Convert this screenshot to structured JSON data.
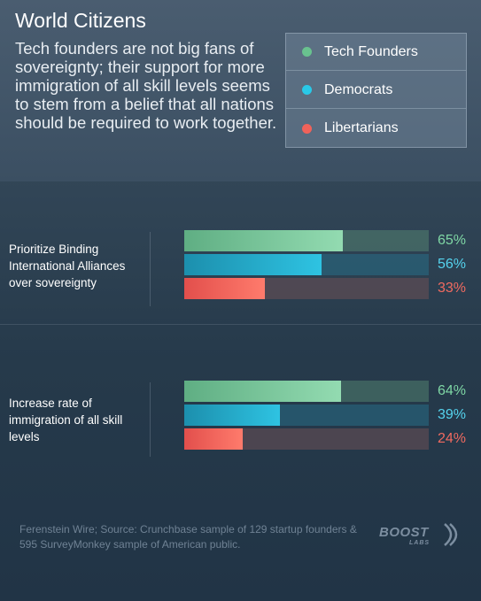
{
  "header": {
    "title": "World Citizens",
    "subtitle": "Tech founders are not big fans of sovereignty; their support for more immigration of all skill levels seems to stem from a belief that all nations should be required to work together."
  },
  "legend": [
    {
      "name": "Tech Founders",
      "color": "#69c28f"
    },
    {
      "name": "Democrats",
      "color": "#29c9e8"
    },
    {
      "name": "Libertarians",
      "color": "#f0625a"
    }
  ],
  "chart_data": {
    "type": "bar",
    "orientation": "horizontal",
    "categories": [
      "Prioritize Binding International Alliances over sovereignty",
      "Increase rate of immigration of all skill levels"
    ],
    "series": [
      {
        "name": "Tech Founders",
        "values": [
          65,
          64
        ],
        "labels": [
          "65%",
          "64%"
        ]
      },
      {
        "name": "Democrats",
        "values": [
          56,
          39
        ],
        "labels": [
          "56%",
          "39%"
        ]
      },
      {
        "name": "Libertarians",
        "values": [
          33,
          24
        ],
        "labels": [
          "33%",
          "24%"
        ]
      }
    ],
    "xlim": [
      0,
      100
    ],
    "grid": false,
    "legend_position": "top-right"
  },
  "footer": {
    "source": "Ferenstein Wire; Source: Crunchbase sample of 129 startup founders & 595 SurveyMonkey sample of American public.",
    "logo_text": "BOOST",
    "logo_sub": "LABS"
  }
}
